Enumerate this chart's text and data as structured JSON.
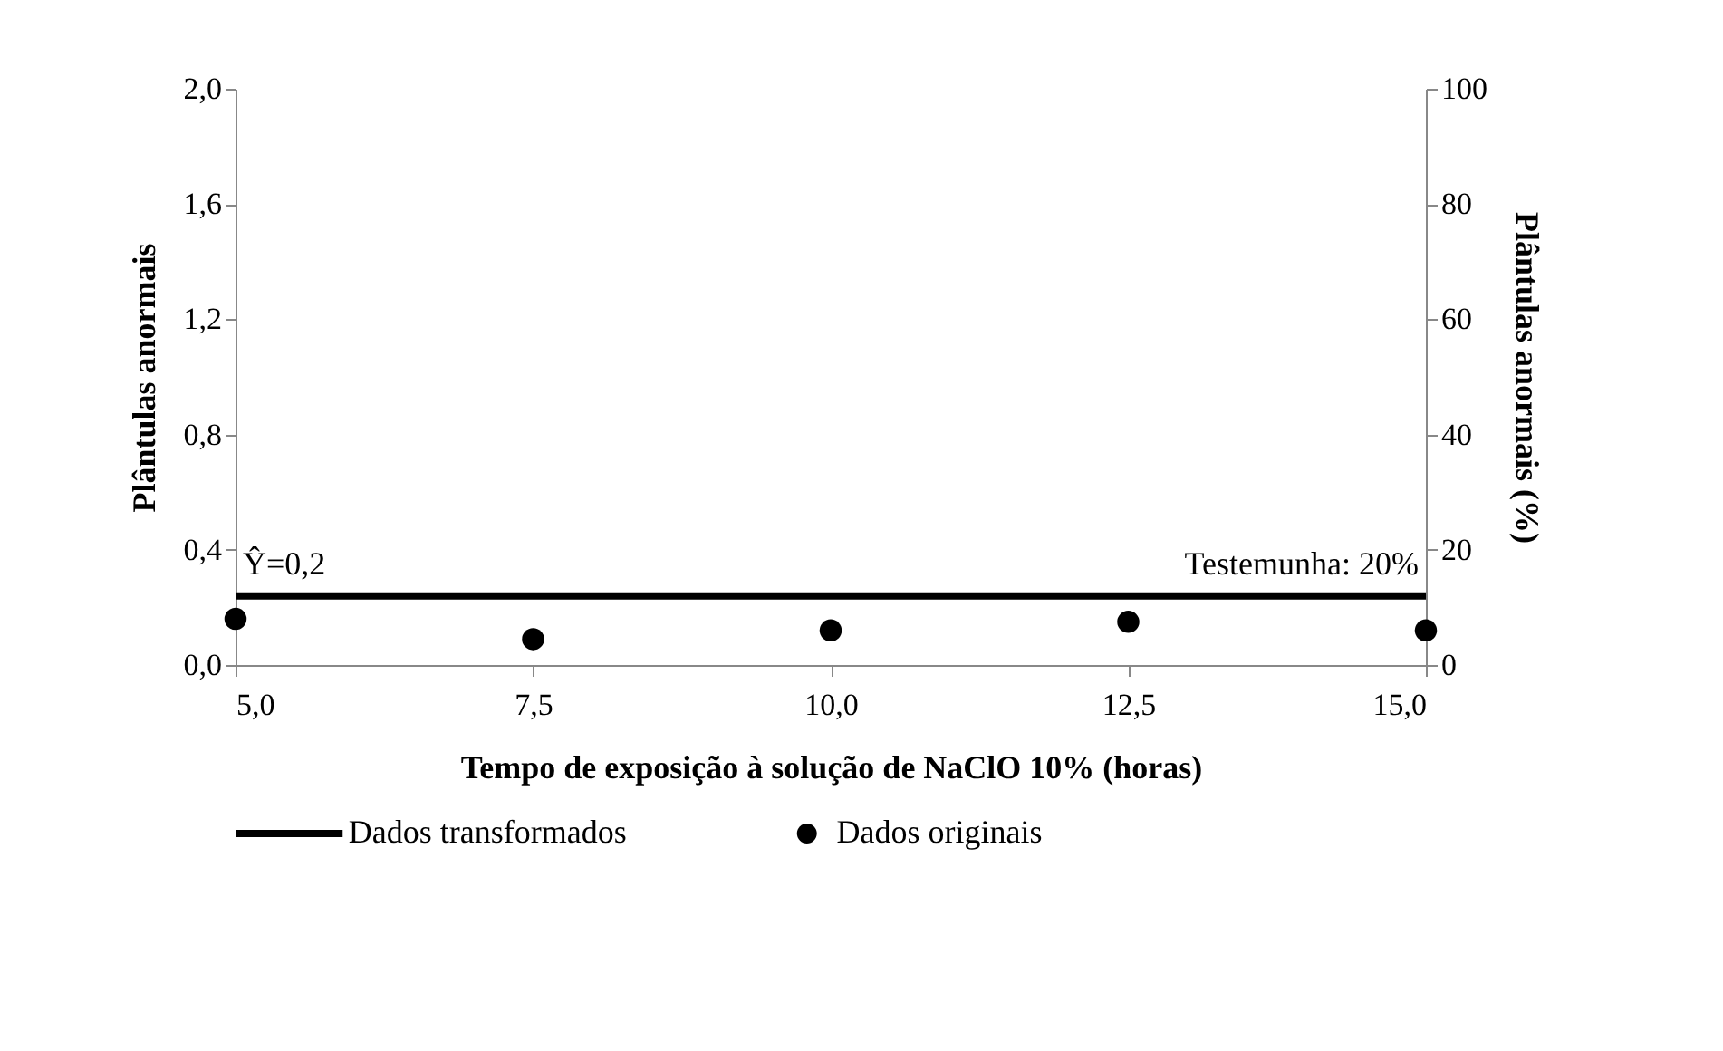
{
  "chart_data": {
    "type": "scatter",
    "xlabel": "Tempo de exposição à solução de NaClO 10% (horas)",
    "ylabel": "Plântulas anormais",
    "y2label": "Plântulas anormais (%)",
    "x": [
      5,
      7.5,
      10,
      12.5,
      15
    ],
    "series": [
      {
        "name": "Dados transformados",
        "type": "line",
        "color": "#000000",
        "x": [
          5,
          15
        ],
        "values": [
          0.24,
          0.24
        ],
        "marker": "none",
        "line_style": "solid"
      },
      {
        "name": "Dados originais",
        "color": "#000000",
        "values": [
          0.16,
          0.09,
          0.12,
          0.15,
          0.12
        ],
        "marker": "circle"
      }
    ],
    "xlim": [
      5,
      15
    ],
    "xticks": [
      {
        "value": 5,
        "label": "5,0"
      },
      {
        "value": 7.5,
        "label": "7,5"
      },
      {
        "value": 10,
        "label": "10,0"
      },
      {
        "value": 12.5,
        "label": "12,5"
      },
      {
        "value": 15,
        "label": "15,0"
      }
    ],
    "ylim": [
      0,
      2
    ],
    "yticks": [
      {
        "value": 0,
        "label": "0,0"
      },
      {
        "value": 0.4,
        "label": "0,4"
      },
      {
        "value": 0.8,
        "label": "0,8"
      },
      {
        "value": 1.2,
        "label": "1,2"
      },
      {
        "value": 1.6,
        "label": "1,6"
      },
      {
        "value": 2,
        "label": "2,0"
      }
    ],
    "y2lim": [
      0,
      100
    ],
    "y2ticks": [
      0,
      20,
      40,
      60,
      80,
      100
    ],
    "annotations": [
      {
        "text": "Ŷ=0,2",
        "x": 5,
        "y": 0.24
      },
      {
        "text": "Testemunha: 20%",
        "x": 15,
        "y": 0.24
      }
    ],
    "grid": false,
    "legend": "bottom"
  }
}
